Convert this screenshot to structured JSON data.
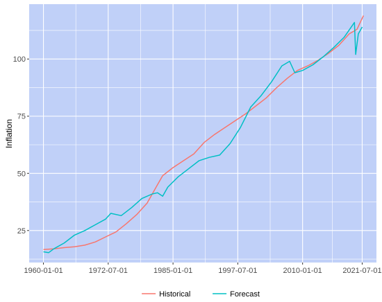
{
  "chart_data": {
    "type": "line",
    "title": "",
    "xlabel": "",
    "ylabel": "Inflation",
    "grid": true,
    "legend_position": "bottom",
    "x_ticks": [
      "1960-01-01",
      "1972-07-01",
      "1985-01-01",
      "1997-07-01",
      "2010-01-01",
      "2021-07-01"
    ],
    "y_ticks": [
      25,
      50,
      75,
      100
    ],
    "xlim": [
      "1957-04-01",
      "2024-04-01"
    ],
    "ylim": [
      11,
      124
    ],
    "panel_color": "#c0d0f8",
    "series": [
      {
        "name": "Historical",
        "color": "#f8766d",
        "points": [
          [
            "1960-01-01",
            16.7
          ],
          [
            "1962-01-01",
            17.0
          ],
          [
            "1964-01-01",
            17.5
          ],
          [
            "1966-01-01",
            17.9
          ],
          [
            "1968-01-01",
            18.6
          ],
          [
            "1970-01-01",
            20.0
          ],
          [
            "1972-01-01",
            22.2
          ],
          [
            "1974-01-01",
            24.4
          ],
          [
            "1976-01-01",
            28.0
          ],
          [
            "1978-01-01",
            32.0
          ],
          [
            "1980-01-01",
            37.0
          ],
          [
            "1982-01-01",
            45.0
          ],
          [
            "1983-01-01",
            49.0
          ],
          [
            "1985-01-01",
            52.5
          ],
          [
            "1987-01-01",
            55.5
          ],
          [
            "1989-01-01",
            58.5
          ],
          [
            "1991-01-01",
            63.5
          ],
          [
            "1993-01-01",
            67.0
          ],
          [
            "1995-01-01",
            70.0
          ],
          [
            "1997-01-01",
            73.0
          ],
          [
            "1999-01-01",
            76.0
          ],
          [
            "2001-01-01",
            79.5
          ],
          [
            "2003-01-01",
            83.0
          ],
          [
            "2005-01-01",
            87.5
          ],
          [
            "2007-01-01",
            91.5
          ],
          [
            "2009-01-01",
            95.0
          ],
          [
            "2011-01-01",
            97.0
          ],
          [
            "2013-01-01",
            99.5
          ],
          [
            "2015-01-01",
            102.5
          ],
          [
            "2017-01-01",
            106.0
          ],
          [
            "2019-01-01",
            111.0
          ],
          [
            "2020-07-01",
            113.0
          ],
          [
            "2021-10-01",
            119.0
          ]
        ]
      },
      {
        "name": "Forecast",
        "color": "#00bfc4",
        "points": [
          [
            "1960-01-01",
            15.7
          ],
          [
            "1961-01-01",
            15.3
          ],
          [
            "1962-01-01",
            17.0
          ],
          [
            "1964-01-01",
            19.5
          ],
          [
            "1966-01-01",
            23.0
          ],
          [
            "1968-01-01",
            25.0
          ],
          [
            "1970-01-01",
            27.5
          ],
          [
            "1972-01-01",
            30.0
          ],
          [
            "1973-01-01",
            32.5
          ],
          [
            "1975-01-01",
            31.5
          ],
          [
            "1977-01-01",
            35.0
          ],
          [
            "1979-01-01",
            39.0
          ],
          [
            "1981-01-01",
            41.0
          ],
          [
            "1982-01-01",
            41.5
          ],
          [
            "1983-01-01",
            40.0
          ],
          [
            "1984-01-01",
            44.0
          ],
          [
            "1986-01-01",
            48.5
          ],
          [
            "1988-01-01",
            52.0
          ],
          [
            "1990-01-01",
            55.5
          ],
          [
            "1992-01-01",
            57.0
          ],
          [
            "1994-01-01",
            58.0
          ],
          [
            "1996-01-01",
            63.0
          ],
          [
            "1998-01-01",
            70.0
          ],
          [
            "2000-01-01",
            79.0
          ],
          [
            "2002-01-01",
            84.0
          ],
          [
            "2004-01-01",
            90.0
          ],
          [
            "2006-01-01",
            97.0
          ],
          [
            "2007-07-01",
            99.0
          ],
          [
            "2008-07-01",
            94.0
          ],
          [
            "2010-01-01",
            95.0
          ],
          [
            "2012-01-01",
            97.5
          ],
          [
            "2014-01-01",
            101.0
          ],
          [
            "2016-01-01",
            105.0
          ],
          [
            "2018-01-01",
            109.5
          ],
          [
            "2020-01-01",
            116.0
          ],
          [
            "2020-04-01",
            102.0
          ],
          [
            "2020-10-01",
            111.0
          ],
          [
            "2021-07-01",
            114.0
          ]
        ]
      }
    ]
  }
}
